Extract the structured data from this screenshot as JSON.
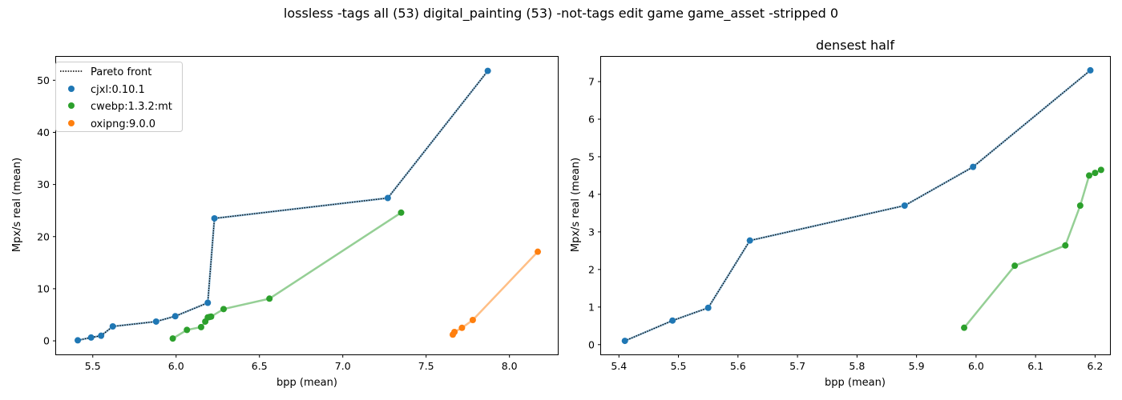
{
  "figure": {
    "title": "lossless -tags all (53) digital_painting (53) -not-tags edit game game_asset -stripped 0"
  },
  "colors": {
    "cjxl": "#1f77b4",
    "cwebp": "#2ca02c",
    "oxipng": "#ff7f0e",
    "pareto": "#000000"
  },
  "chart_data": [
    {
      "type": "scatter",
      "title": "",
      "xlabel": "bpp (mean)",
      "ylabel": "Mpx/s real (mean)",
      "xlim": [
        5.28,
        8.29
      ],
      "ylim": [
        -2.6,
        54.5
      ],
      "xticks": [
        "5.5",
        "6.0",
        "6.5",
        "7.0",
        "7.5",
        "8.0"
      ],
      "yticks": [
        "0",
        "10",
        "20",
        "30",
        "40",
        "50"
      ],
      "legend": {
        "placement": "upper left",
        "entries": [
          "Pareto front",
          "cjxl:0.10.1",
          "cwebp:1.3.2:mt",
          "oxipng:9.0.0"
        ]
      },
      "pareto_label": "Pareto front",
      "series": [
        {
          "name": "cjxl:0.10.1",
          "color_key": "cjxl",
          "x": [
            5.41,
            5.49,
            5.55,
            5.62,
            5.88,
            5.995,
            6.19,
            6.23,
            7.27,
            7.87
          ],
          "y": [
            0.1,
            0.64,
            0.98,
            2.77,
            3.7,
            4.73,
            7.3,
            23.5,
            27.4,
            51.8
          ]
        },
        {
          "name": "cwebp:1.3.2:mt",
          "color_key": "cwebp",
          "x": [
            5.98,
            6.065,
            6.15,
            6.175,
            6.19,
            6.2,
            6.21,
            6.285,
            6.56,
            7.35
          ],
          "y": [
            0.45,
            2.1,
            2.64,
            3.7,
            4.5,
            4.57,
            4.65,
            6.1,
            8.1,
            24.6
          ]
        },
        {
          "name": "oxipng:9.0.0",
          "color_key": "oxipng",
          "x": [
            7.66,
            7.67,
            7.715,
            7.78,
            8.17
          ],
          "y": [
            1.2,
            1.7,
            2.5,
            4.0,
            17.1
          ]
        }
      ],
      "pareto_front": {
        "x": [
          5.41,
          5.49,
          5.55,
          5.62,
          5.88,
          5.995,
          6.19,
          6.23,
          7.27,
          7.87
        ],
        "y": [
          0.1,
          0.64,
          0.98,
          2.77,
          3.7,
          4.73,
          7.3,
          23.5,
          27.4,
          51.8
        ]
      }
    },
    {
      "type": "scatter",
      "title": "densest half",
      "xlabel": "bpp (mean)",
      "ylabel": "Mpx/s real (mean)",
      "xlim": [
        5.37,
        6.225
      ],
      "ylim": [
        -0.26,
        7.66
      ],
      "xticks": [
        "5.4",
        "5.5",
        "5.6",
        "5.7",
        "5.8",
        "5.9",
        "6.0",
        "6.1",
        "6.2"
      ],
      "yticks": [
        "0",
        "1",
        "2",
        "3",
        "4",
        "5",
        "6",
        "7"
      ],
      "series": [
        {
          "name": "cjxl:0.10.1",
          "color_key": "cjxl",
          "x": [
            5.41,
            5.49,
            5.55,
            5.62,
            5.88,
            5.995,
            6.192
          ],
          "y": [
            0.1,
            0.64,
            0.98,
            2.77,
            3.7,
            4.73,
            7.3
          ]
        },
        {
          "name": "cwebp:1.3.2:mt",
          "color_key": "cwebp",
          "x": [
            5.98,
            6.065,
            6.15,
            6.175,
            6.19,
            6.2,
            6.21
          ],
          "y": [
            0.45,
            2.1,
            2.64,
            3.7,
            4.5,
            4.57,
            4.65
          ]
        }
      ],
      "pareto_front": {
        "x": [
          5.41,
          5.49,
          5.55,
          5.62,
          5.88,
          5.995,
          6.192
        ],
        "y": [
          0.1,
          0.64,
          0.98,
          2.77,
          3.7,
          4.73,
          7.3
        ]
      }
    }
  ]
}
